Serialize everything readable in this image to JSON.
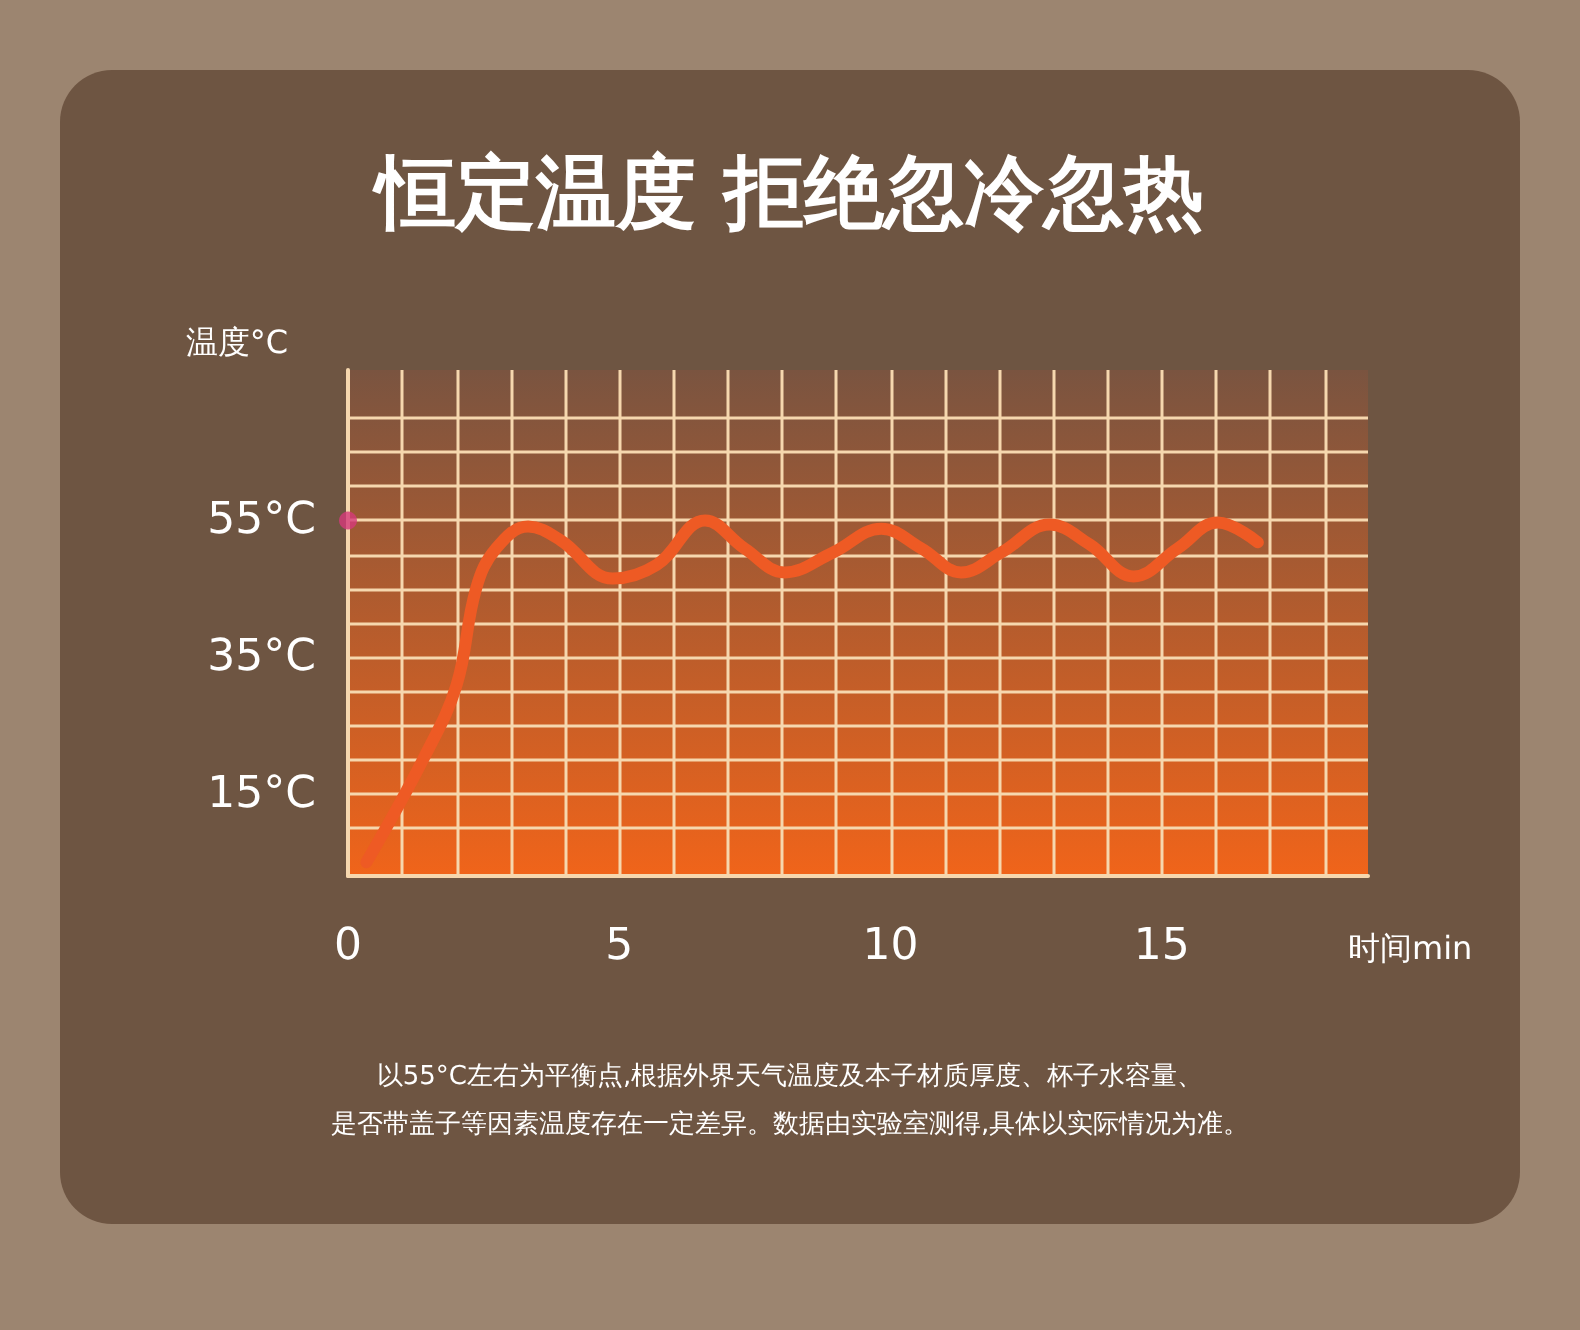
{
  "chart_data": {
    "type": "line",
    "title": "恒定温度 拒绝忽冷忽热",
    "xlabel": "时间min",
    "ylabel": "温度°C",
    "xlim": [
      0,
      18.8
    ],
    "xticks": [
      0,
      {
        "value": 1,
        "label": null
      },
      {
        "value": 2,
        "label": null
      },
      {
        "value": 3,
        "label": null
      },
      {
        "value": 4,
        "label": null
      },
      5,
      {
        "value": 6,
        "label": null
      },
      {
        "value": 7,
        "label": null
      },
      {
        "value": 8,
        "label": null
      },
      {
        "value": 9,
        "label": null
      },
      10,
      {
        "value": 11,
        "label": null
      },
      {
        "value": 12,
        "label": null
      },
      {
        "value": 13,
        "label": null
      },
      {
        "value": 14,
        "label": null
      },
      15,
      {
        "value": 16,
        "label": null
      },
      {
        "value": 17,
        "label": null
      },
      {
        "value": 18,
        "label": null
      }
    ],
    "ylim": [
      3,
      77
    ],
    "yticks": [
      {
        "value": 10,
        "label": null
      },
      {
        "value": 15,
        "label": "15°C"
      },
      {
        "value": 20,
        "label": null
      },
      {
        "value": 25,
        "label": null
      },
      {
        "value": 30,
        "label": null
      },
      {
        "value": 35,
        "label": "35°C"
      },
      {
        "value": 40,
        "label": null
      },
      {
        "value": 45,
        "label": null
      },
      {
        "value": 50,
        "label": null
      },
      {
        "value": 55,
        "label": "55°C"
      },
      {
        "value": 60,
        "label": null
      },
      {
        "value": 65,
        "label": null
      },
      {
        "value": 70,
        "label": null
      }
    ],
    "grid": true,
    "series": [
      {
        "color": "#ee5a24",
        "x": [
          0.34,
          1.4,
          2.0,
          2.36,
          2.73,
          3.32,
          3.92,
          4.88,
          5.69,
          6.58,
          7.31,
          8.05,
          8.94,
          9.83,
          10.57,
          11.3,
          12.04,
          12.93,
          13.67,
          14.48,
          15.29,
          16.03,
          16.77
        ],
        "values": [
          5,
          20.3,
          30.9,
          45,
          50.9,
          54.1,
          52.1,
          46.5,
          48.5,
          55,
          50.9,
          47.4,
          50.3,
          53.8,
          50.9,
          47.4,
          50.3,
          54.4,
          51.5,
          46.8,
          50.9,
          54.7,
          51.8
        ]
      },
      {
        "type": "scatter",
        "color": "#d63a7a",
        "x": [
          0
        ],
        "values": [
          55
        ]
      }
    ],
    "annotations": [
      "以55°C左右为平衡点,根据外界天气温度及本子材质厚度、杯子水容量、",
      "是否带盖子等因素温度存在一定差异。数据由实验室测得,具体以实际情况为准。"
    ]
  }
}
